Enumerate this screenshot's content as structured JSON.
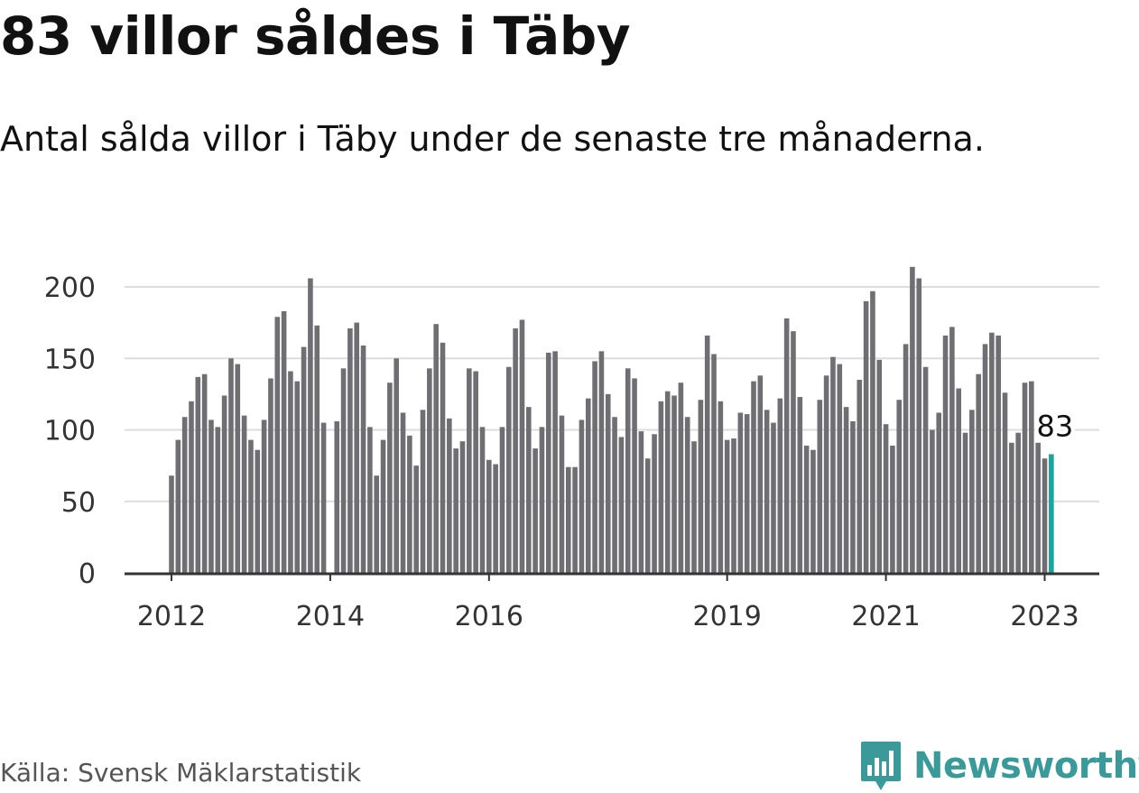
{
  "title": "83 villor såldes i Täby",
  "subtitle": "Antal sålda villor i Täby under de senaste tre månaderna.",
  "source": "Källa: Svensk Mäklarstatistik",
  "logo": {
    "name": "Newsworthy",
    "icon": "bar-chart-pin-icon"
  },
  "colors": {
    "bar": "#6f6f73",
    "highlight": "#1aa59e",
    "grid": "#dddddd",
    "axis": "#333333",
    "brand": "#3a9a9a"
  },
  "chart_data": {
    "type": "bar",
    "title": "",
    "xlabel": "",
    "ylabel": "",
    "ylim": [
      0,
      220
    ],
    "yticks": [
      0,
      50,
      100,
      150,
      200
    ],
    "grid": true,
    "x_start": "2012-01",
    "xticks": [
      {
        "label": "2012",
        "month_index": 0
      },
      {
        "label": "2014",
        "month_index": 24
      },
      {
        "label": "2016",
        "month_index": 48
      },
      {
        "label": "2019",
        "month_index": 84
      },
      {
        "label": "2021",
        "month_index": 108
      },
      {
        "label": "2023",
        "month_index": 132
      }
    ],
    "highlight_label": "83",
    "values": [
      68,
      93,
      109,
      120,
      137,
      139,
      107,
      102,
      124,
      150,
      146,
      110,
      93,
      86,
      107,
      136,
      179,
      183,
      141,
      134,
      158,
      206,
      173,
      105,
      null,
      106,
      143,
      171,
      175,
      159,
      102,
      68,
      93,
      133,
      150,
      112,
      96,
      75,
      114,
      143,
      174,
      161,
      108,
      87,
      92,
      143,
      141,
      102,
      79,
      76,
      102,
      144,
      171,
      177,
      116,
      87,
      102,
      154,
      155,
      110,
      74,
      74,
      107,
      122,
      148,
      155,
      125,
      109,
      95,
      143,
      136,
      99,
      80,
      97,
      120,
      127,
      124,
      133,
      109,
      92,
      121,
      166,
      153,
      120,
      93,
      94,
      112,
      111,
      134,
      138,
      114,
      105,
      122,
      178,
      169,
      123,
      89,
      86,
      121,
      138,
      151,
      146,
      116,
      106,
      135,
      190,
      197,
      149,
      104,
      89,
      121,
      160,
      214,
      206,
      144,
      100,
      112,
      166,
      172,
      129,
      98,
      114,
      139,
      160,
      168,
      166,
      126,
      91,
      98,
      133,
      134,
      91,
      80,
      83
    ]
  }
}
